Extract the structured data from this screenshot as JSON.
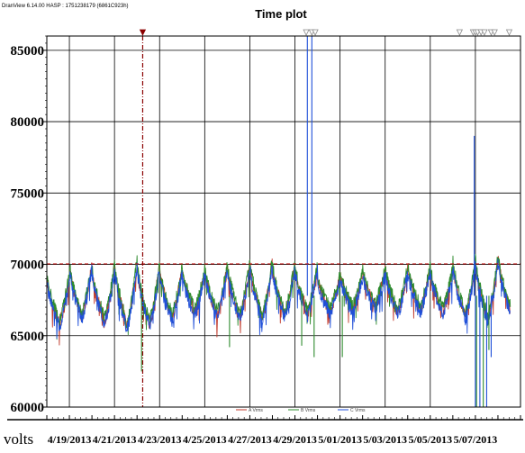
{
  "header": {
    "app_id": "DranView 6.14.00 HASP : 1751238179 (6861C923h)"
  },
  "chart_data": {
    "type": "line",
    "title": "Time plot",
    "ylabel": "volts",
    "xlabel": "",
    "x_tick_labels": [
      "4/19/2013",
      "4/21/2013",
      "4/23/2013",
      "4/25/2013",
      "4/27/2013",
      "4/29/2013",
      "5/01/2013",
      "5/03/2013",
      "5/05/2013",
      "5/07/2013"
    ],
    "x_range": [
      "4/18/2013 00:00",
      "5/09/2013 00:00"
    ],
    "y_ticks": [
      60000,
      65000,
      70000,
      75000,
      80000,
      85000
    ],
    "ylim": [
      60000,
      86000
    ],
    "grid": true,
    "reference_line": {
      "value": 70000,
      "style": "dashed",
      "color": "#c00000"
    },
    "markers": [
      {
        "day": 4.25,
        "type": "filled",
        "color": "#8b0000",
        "line": true
      },
      {
        "day": 11.5,
        "type": "outline"
      },
      {
        "day": 11.75,
        "type": "outline"
      },
      {
        "day": 11.9,
        "type": "outline"
      },
      {
        "day": 18.3,
        "type": "outline"
      },
      {
        "day": 18.9,
        "type": "outline"
      },
      {
        "day": 19.0,
        "type": "outline"
      },
      {
        "day": 19.1,
        "type": "outline"
      },
      {
        "day": 19.25,
        "type": "outline"
      },
      {
        "day": 19.4,
        "type": "outline"
      },
      {
        "day": 19.7,
        "type": "outline"
      },
      {
        "day": 19.85,
        "type": "outline"
      },
      {
        "day": 20.5,
        "type": "outline"
      }
    ],
    "legend": {
      "placement": "bottom-center"
    },
    "series": [
      {
        "name": "A Vrms",
        "color": "#c0392b"
      },
      {
        "name": "B Vrms",
        "color": "#2e8b2e"
      },
      {
        "name": "C Vrms",
        "color": "#1f4fd8"
      }
    ],
    "daily_pattern": {
      "days": [
        0,
        1,
        2,
        3,
        4,
        5,
        6,
        7,
        8,
        9,
        10,
        11,
        12,
        13,
        14,
        15,
        16,
        17,
        18,
        19,
        20
      ],
      "peak": [
        69200,
        70100,
        69900,
        70200,
        70100,
        69800,
        69600,
        69900,
        70000,
        70200,
        70100,
        69900,
        69200,
        69500,
        69600,
        69800,
        69900,
        69700,
        70300,
        70400,
        70600
      ],
      "trough": [
        66000,
        66500,
        66200,
        65800,
        66000,
        66400,
        66800,
        66600,
        66500,
        66400,
        66600,
        66700,
        66900,
        67000,
        67200,
        66800,
        67000,
        66900,
        66500,
        66300,
        67000
      ]
    },
    "spikes": [
      {
        "series": "A Vrms",
        "day": 11.4,
        "value": 66500
      },
      {
        "series": "B Vrms",
        "day": 4.2,
        "value": 62500
      },
      {
        "series": "B Vrms",
        "day": 8.1,
        "value": 64200
      },
      {
        "series": "B Vrms",
        "day": 11.3,
        "value": 64300
      },
      {
        "series": "B Vrms",
        "day": 11.85,
        "value": 63500
      },
      {
        "series": "B Vrms",
        "day": 13.1,
        "value": 63500
      },
      {
        "series": "B Vrms",
        "day": 19.05,
        "value": 60000
      },
      {
        "series": "B Vrms",
        "day": 19.35,
        "value": 60000
      },
      {
        "series": "B Vrms",
        "day": 19.6,
        "value": 64000
      },
      {
        "series": "C Vrms",
        "day": 11.55,
        "value": 86000
      },
      {
        "series": "C Vrms",
        "day": 11.75,
        "value": 86000
      },
      {
        "series": "C Vrms",
        "day": 18.95,
        "value": 79000
      },
      {
        "series": "C Vrms",
        "day": 19.0,
        "value": 60000
      },
      {
        "series": "C Vrms",
        "day": 19.2,
        "value": 60000
      },
      {
        "series": "C Vrms",
        "day": 19.5,
        "value": 60000
      },
      {
        "series": "C Vrms",
        "day": 19.7,
        "value": 63500
      }
    ]
  }
}
